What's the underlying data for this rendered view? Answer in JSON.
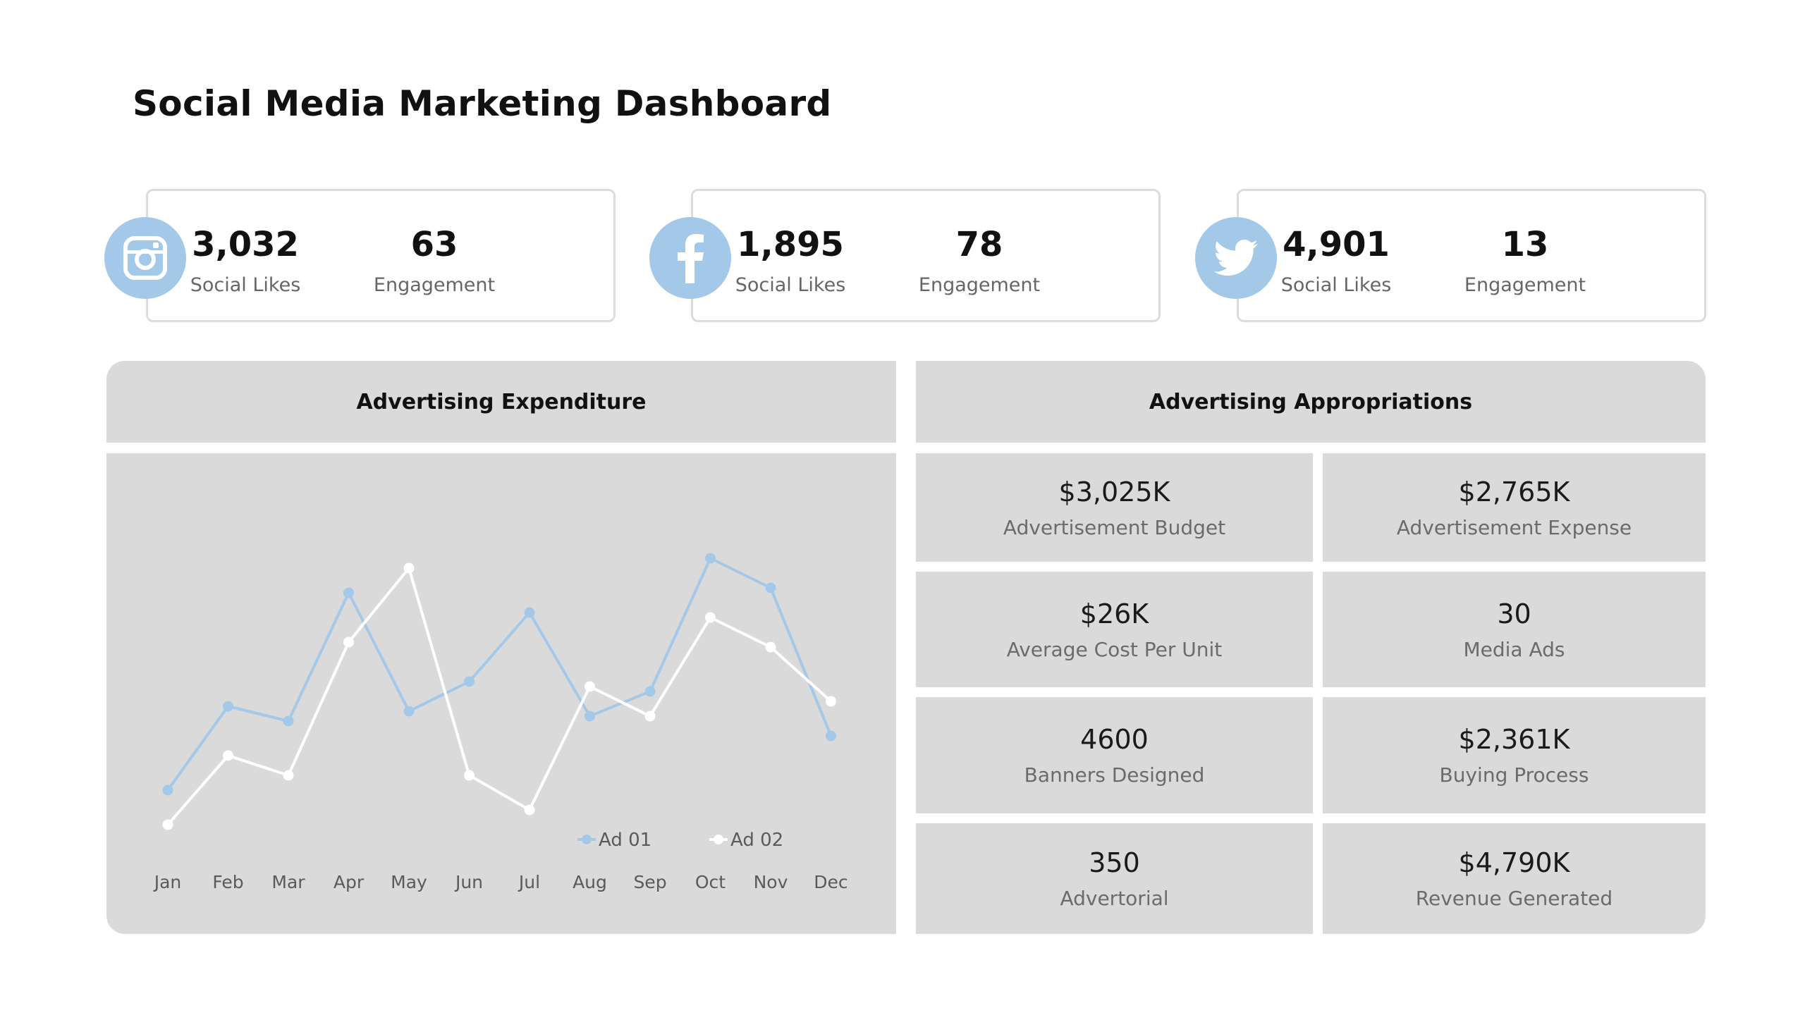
{
  "title": "Social Media Marketing Dashboard",
  "social": [
    {
      "icon": "instagram-icon",
      "likes": "3,032",
      "likes_label": "Social Likes",
      "engagement": "63",
      "engagement_label": "Engagement"
    },
    {
      "icon": "facebook-icon",
      "likes": "1,895",
      "likes_label": "Social Likes",
      "engagement": "78",
      "engagement_label": "Engagement"
    },
    {
      "icon": "twitter-icon",
      "likes": "4,901",
      "likes_label": "Social Likes",
      "engagement": "13",
      "engagement_label": "Engagement"
    }
  ],
  "expenditure": {
    "header": "Advertising Expenditure"
  },
  "appropriations": {
    "header": "Advertising Appropriations",
    "metrics": [
      {
        "value": "$3,025K",
        "label": "Advertisement Budget"
      },
      {
        "value": "$2,765K",
        "label": "Advertisement Expense"
      },
      {
        "value": "$26K",
        "label": "Average Cost Per Unit"
      },
      {
        "value": "30",
        "label": "Media Ads"
      },
      {
        "value": "4600",
        "label": "Banners Designed"
      },
      {
        "value": "$2,361K",
        "label": "Buying Process"
      },
      {
        "value": "350",
        "label": "Advertorial"
      },
      {
        "value": "$4,790K",
        "label": "Revenue Generated"
      }
    ]
  },
  "colors": {
    "accent": "#a3c8e8",
    "series2": "#ffffff",
    "panel": "#dadadb"
  },
  "chart_data": {
    "type": "line",
    "title": "Advertising Expenditure",
    "categories": [
      "Jan",
      "Feb",
      "Mar",
      "Apr",
      "May",
      "Jun",
      "Jul",
      "Aug",
      "Sep",
      "Oct",
      "Nov",
      "Dec"
    ],
    "series": [
      {
        "name": "Ad 01",
        "color": "#a3c8e8",
        "values": [
          20,
          37,
          34,
          60,
          36,
          42,
          56,
          35,
          40,
          67,
          61,
          31
        ]
      },
      {
        "name": "Ad 02",
        "color": "#ffffff",
        "values": [
          13,
          27,
          23,
          50,
          65,
          23,
          16,
          41,
          35,
          55,
          49,
          38
        ]
      }
    ],
    "ylim": [
      0,
      80
    ],
    "grid": false,
    "legend": "bottom-right"
  }
}
